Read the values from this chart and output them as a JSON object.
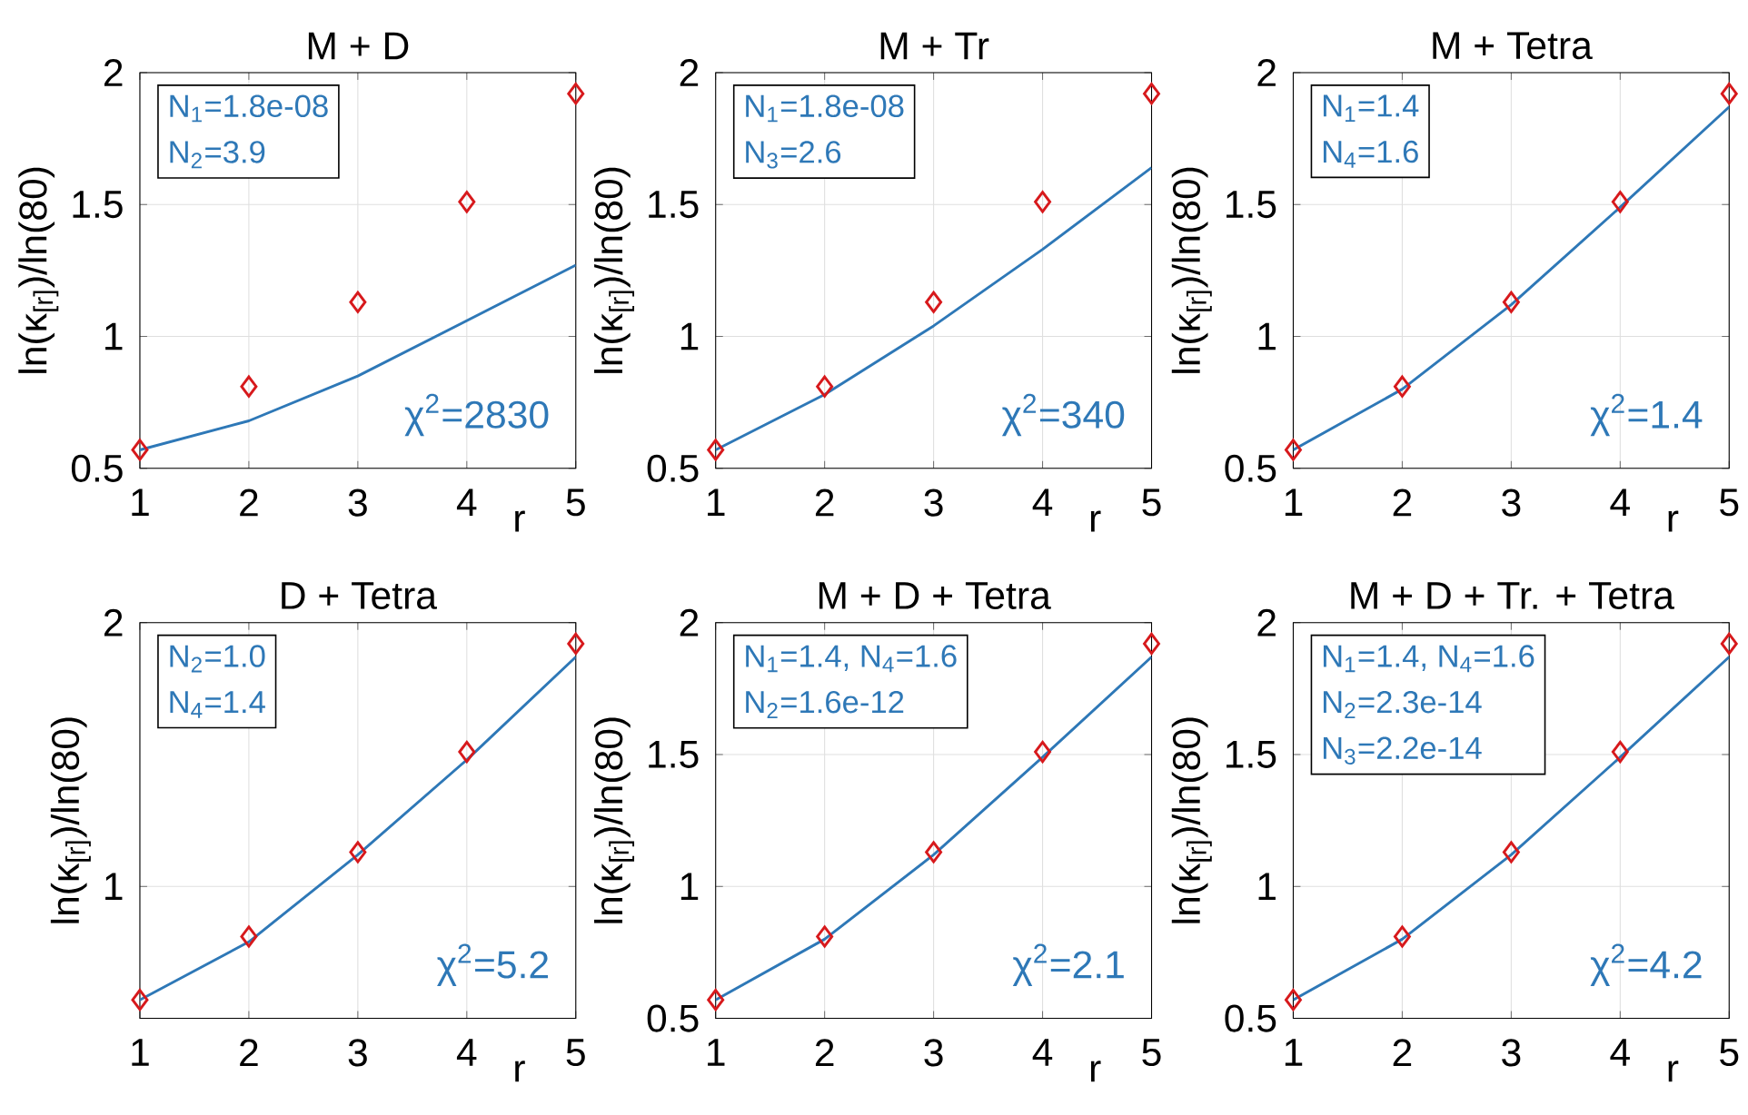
{
  "chart_data": [
    {
      "type": "line",
      "title": "M + D",
      "xlabel": "r",
      "ylabel": "ln(κ$_{[r]}$)/ln(80)",
      "x": [
        1,
        2,
        3,
        4,
        5
      ],
      "xlim": [
        1,
        5
      ],
      "ylim": [
        0.5,
        2
      ],
      "xticks": [
        1,
        2,
        3,
        4,
        5
      ],
      "yticks": [
        0.5,
        1,
        1.5,
        2
      ],
      "grid": true,
      "annotations": [
        "N$_{1}$=1.8e-08",
        "N$_{2}$=3.9",
        "χ$^{2}$=2830"
      ],
      "series": [
        {
          "type": "scatter",
          "color": "#d7191c",
          "marker": "diamond",
          "values": [
            0.57,
            0.81,
            1.13,
            1.51,
            1.92
          ]
        },
        {
          "color": "#2e78b7",
          "marker": "none",
          "line_style": "solid",
          "values": [
            0.57,
            0.68,
            0.85,
            1.06,
            1.27
          ]
        }
      ]
    },
    {
      "type": "line",
      "title": "M + Tr",
      "xlabel": "r",
      "ylabel": "ln(κ$_{[r]}$)/ln(80)",
      "x": [
        1,
        2,
        3,
        4,
        5
      ],
      "xlim": [
        1,
        5
      ],
      "ylim": [
        0.5,
        2
      ],
      "xticks": [
        1,
        2,
        3,
        4,
        5
      ],
      "yticks": [
        0.5,
        1,
        1.5,
        2
      ],
      "grid": true,
      "annotations": [
        "N$_{1}$=1.8e-08",
        "N$_{3}$=2.6",
        "χ$^{2}$=340"
      ],
      "series": [
        {
          "type": "scatter",
          "color": "#d7191c",
          "marker": "diamond",
          "values": [
            0.57,
            0.81,
            1.13,
            1.51,
            1.92
          ]
        },
        {
          "color": "#2e78b7",
          "marker": "none",
          "line_style": "solid",
          "values": [
            0.57,
            0.78,
            1.04,
            1.33,
            1.64
          ]
        }
      ]
    },
    {
      "type": "line",
      "title": "M + Tetra",
      "xlabel": "r",
      "ylabel": "ln(κ$_{[r]}$)/ln(80)",
      "x": [
        1,
        2,
        3,
        4,
        5
      ],
      "xlim": [
        1,
        5
      ],
      "ylim": [
        0.5,
        2
      ],
      "xticks": [
        1,
        2,
        3,
        4,
        5
      ],
      "yticks": [
        0.5,
        1,
        1.5,
        2
      ],
      "grid": true,
      "annotations": [
        "N$_{1}$=1.4",
        "N$_{4}$=1.6",
        "χ$^{2}$=1.4"
      ],
      "series": [
        {
          "type": "scatter",
          "color": "#d7191c",
          "marker": "diamond",
          "values": [
            0.57,
            0.81,
            1.13,
            1.51,
            1.92
          ]
        },
        {
          "type": "line",
          "color": "#2e78b7",
          "marker": "none",
          "line_style": "solid",
          "values": [
            0.57,
            0.8,
            1.12,
            1.49,
            1.87
          ]
        }
      ]
    },
    {
      "type": "line",
      "title": "D + Tetra",
      "xlabel": "r",
      "ylabel": "ln(κ$_{[r]}$)/ln(80)",
      "x": [
        1,
        2,
        3,
        4,
        5
      ],
      "xlim": [
        1,
        5
      ],
      "ylim": [
        0.5,
        2
      ],
      "xticks": [
        1,
        2,
        3,
        4,
        5
      ],
      "yticks": [
        1,
        2
      ],
      "grid": true,
      "annotations": [
        "N$_{2}$=1.0",
        "N$_{4}$=1.4",
        "χ$^{2}$=5.2"
      ],
      "series": [
        {
          "type": "scatter",
          "color": "#d7191c",
          "marker": "diamond",
          "values": [
            0.57,
            0.81,
            1.13,
            1.51,
            1.92
          ]
        },
        {
          "color": "#2e78b7",
          "marker": "none",
          "line_style": "solid",
          "values": [
            0.57,
            0.79,
            1.12,
            1.48,
            1.87
          ]
        }
      ]
    },
    {
      "type": "line",
      "title": "M + D + Tetra",
      "xlabel": "r",
      "ylabel": "ln(κ$_{[r]}$)/ln(80)",
      "x": [
        1,
        2,
        3,
        4,
        5
      ],
      "xlim": [
        1,
        5
      ],
      "ylim": [
        0.5,
        2
      ],
      "xticks": [
        1,
        2,
        3,
        4,
        5
      ],
      "yticks": [
        0.5,
        1,
        1.5,
        2
      ],
      "grid": true,
      "annotations": [
        "N$_{1}$=1.4, N$_{4}$=1.6",
        "N$_{2}$=1.6e-12",
        "χ$^{2}$=2.1"
      ],
      "series": [
        {
          "type": "scatter",
          "color": "#d7191c",
          "marker": "diamond",
          "values": [
            0.57,
            0.81,
            1.13,
            1.51,
            1.92
          ]
        },
        {
          "type": "line",
          "color": "#2e78b7",
          "marker": "none",
          "line_style": "solid",
          "values": [
            0.57,
            0.8,
            1.12,
            1.49,
            1.87
          ]
        }
      ]
    },
    {
      "type": "line",
      "title": "M + D + Tr. + Tetra",
      "xlabel": "r",
      "ylabel": "ln(κ$_{[r]}$)/ln(80)",
      "x": [
        1,
        2,
        3,
        4,
        5
      ],
      "xlim": [
        1,
        5
      ],
      "ylim": [
        0.5,
        2
      ],
      "xticks": [
        1,
        2,
        3,
        4,
        5
      ],
      "yticks": [
        0.5,
        1,
        1.5,
        2
      ],
      "grid": true,
      "annotations": [
        "N$_{1}$=1.4, N$_{4}$=1.6",
        "N$_{2}$=2.3e-14",
        "N$_{3}$=2.2e-14",
        "χ$^{2}$=4.2"
      ],
      "series": [
        {
          "type": "scatter",
          "color": "#d7191c",
          "marker": "diamond",
          "values": [
            0.57,
            0.81,
            1.13,
            1.51,
            1.92
          ]
        },
        {
          "type": "line",
          "color": "#2e78b7",
          "marker": "none",
          "line_style": "solid",
          "values": [
            0.57,
            0.8,
            1.12,
            1.49,
            1.87
          ]
        }
      ]
    }
  ]
}
